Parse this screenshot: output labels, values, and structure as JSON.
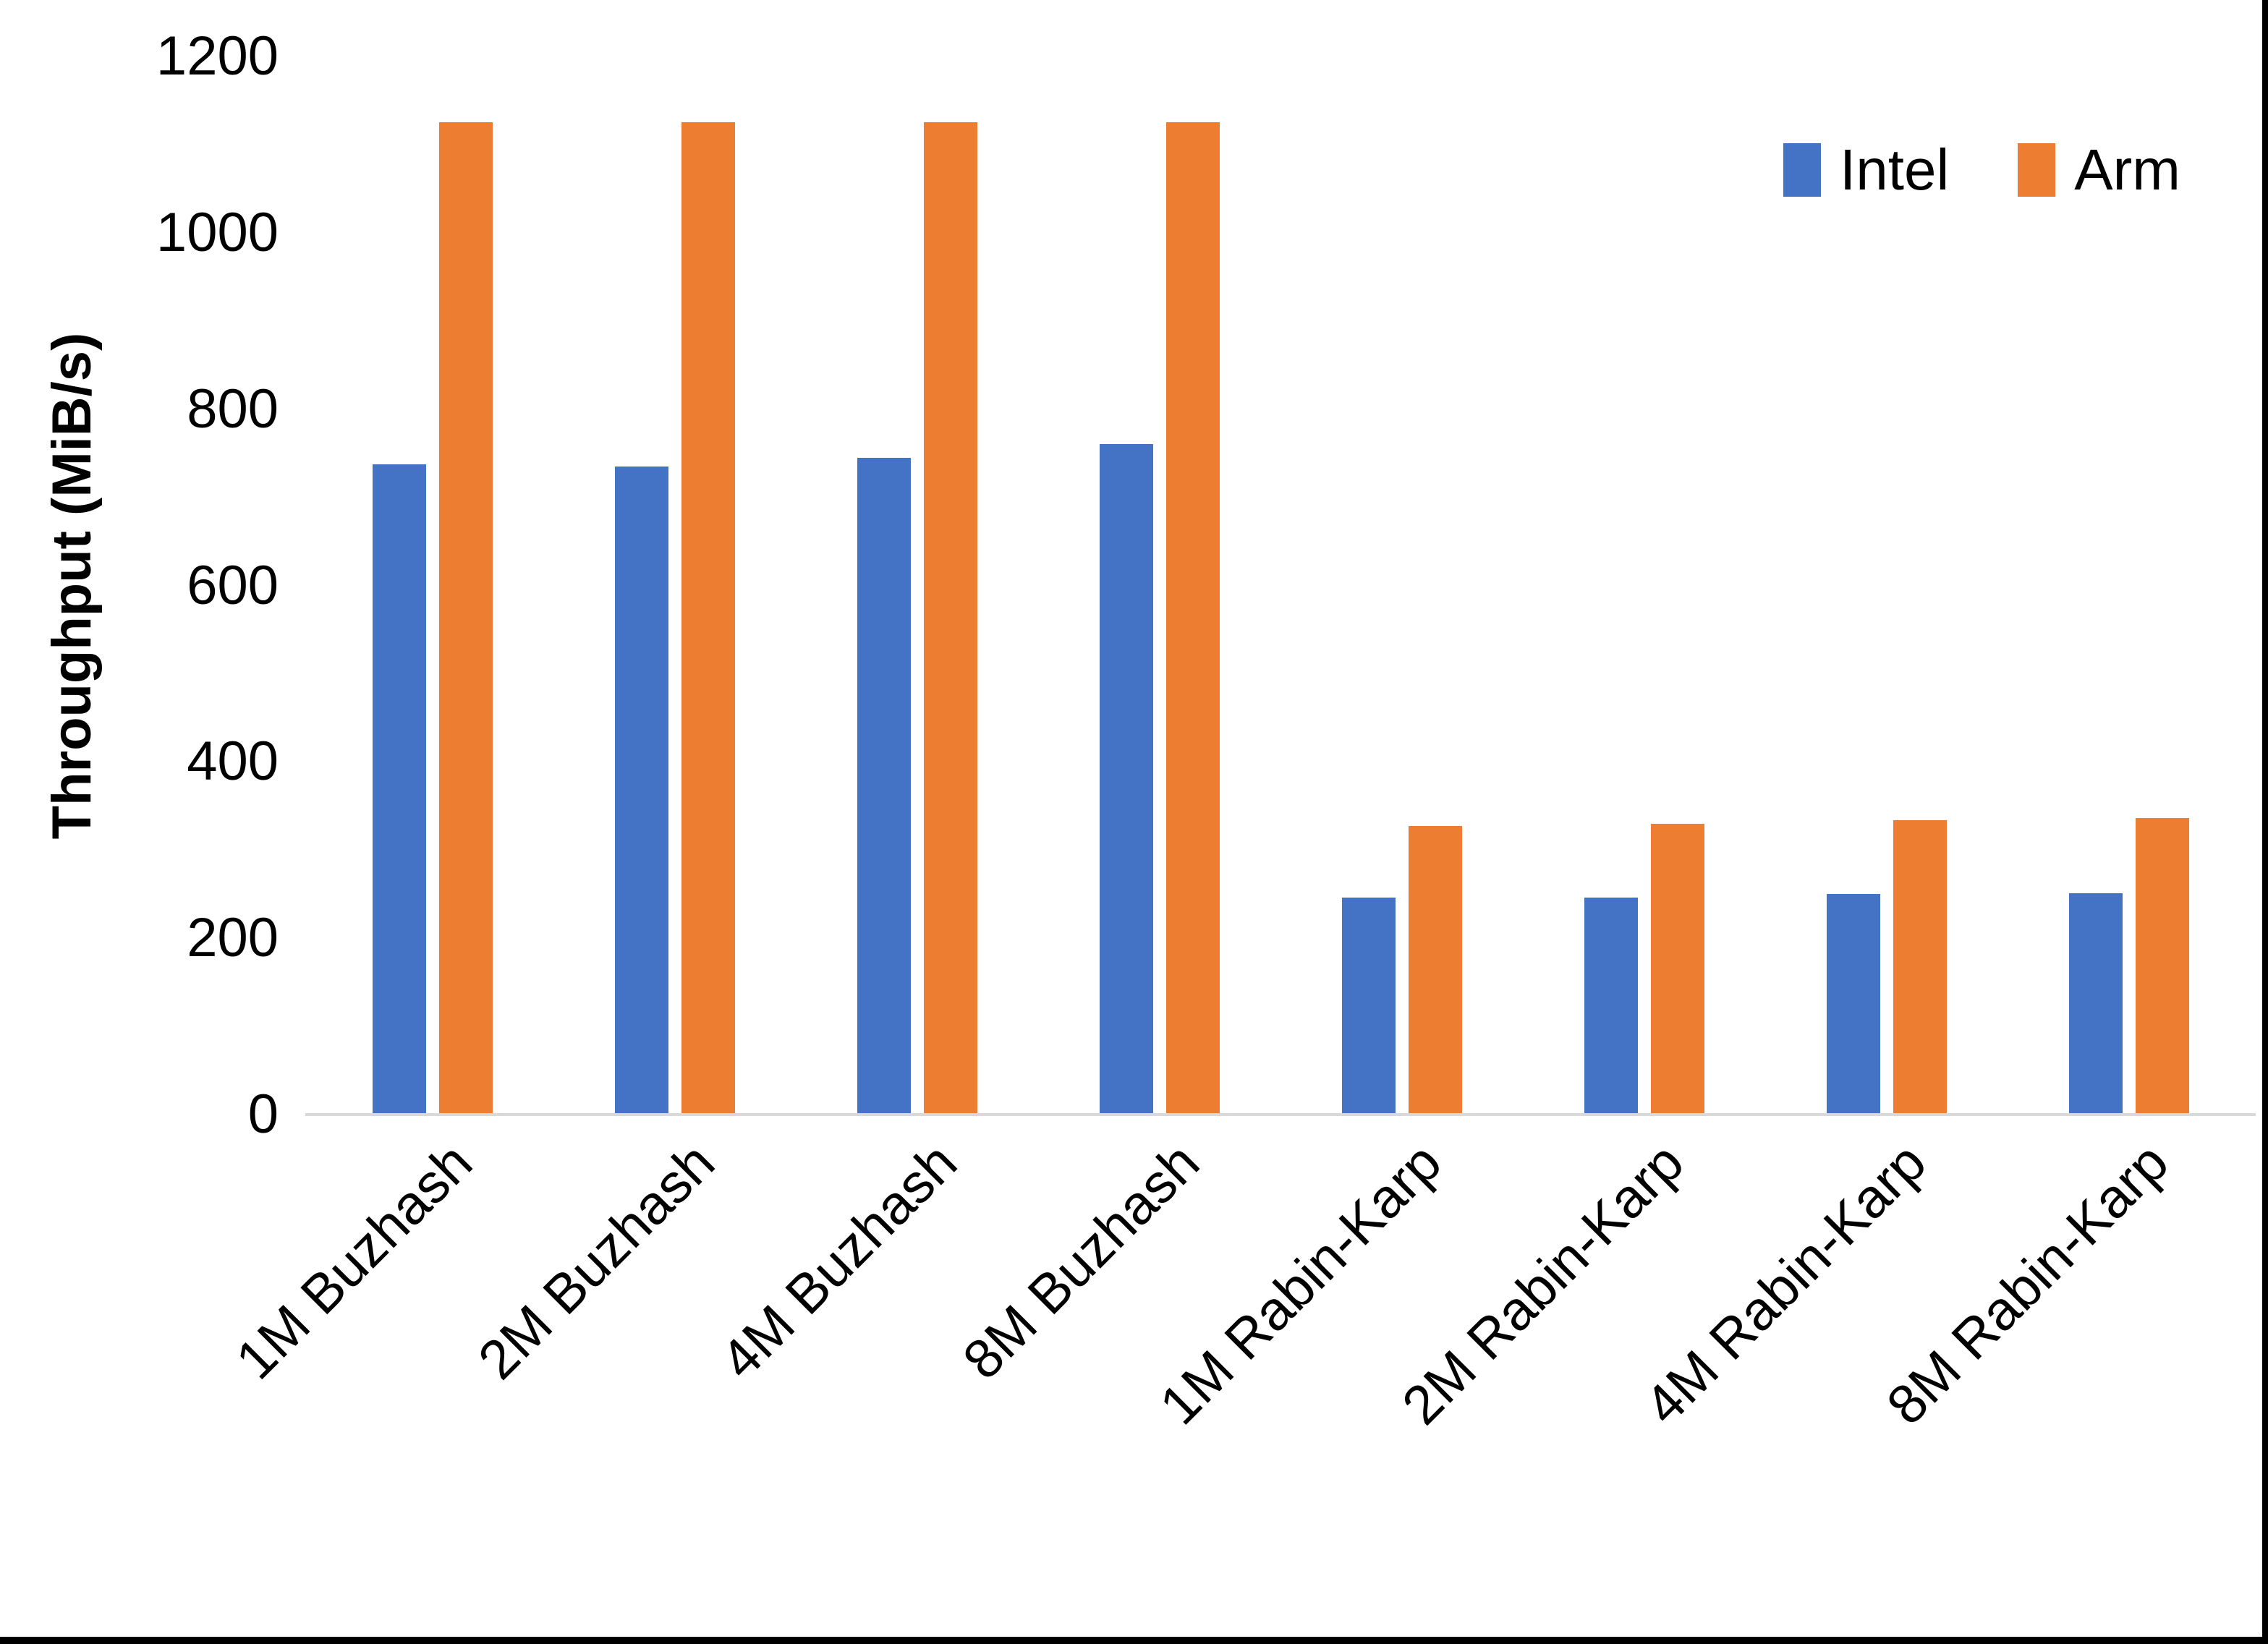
{
  "window": {
    "background": "#ffffff",
    "edge_color": "#000000"
  },
  "axis": {
    "line_color": "#d9d9d9",
    "text_color": "#000000"
  },
  "legend": {
    "items": [
      {
        "label": "Intel",
        "color": "#4472c4"
      },
      {
        "label": "Arm",
        "color": "#ed7d31"
      }
    ]
  },
  "chart_data": {
    "type": "bar",
    "title": "",
    "xlabel": "",
    "ylabel": "Throughput (MiB/s)",
    "ylim": [
      0,
      1200
    ],
    "yticks": [
      0,
      200,
      400,
      600,
      800,
      1000,
      1200
    ],
    "grid": false,
    "legend_position": "top-right",
    "categories": [
      "1M Buzhash",
      "2M Buzhash",
      "4M Buzhash",
      "8M Buzhash",
      "1M Rabin-Karp",
      "2M Rabin-Karp",
      "4M Rabin-Karp",
      "8M Rabin-Karp"
    ],
    "series": [
      {
        "name": "Intel",
        "color": "#4472c4",
        "values": [
          737,
          735,
          745,
          760,
          246,
          246,
          250,
          251
        ]
      },
      {
        "name": "Arm",
        "color": "#ed7d31",
        "values": [
          1125,
          1125,
          1125,
          1125,
          327,
          330,
          334,
          336
        ]
      }
    ]
  }
}
